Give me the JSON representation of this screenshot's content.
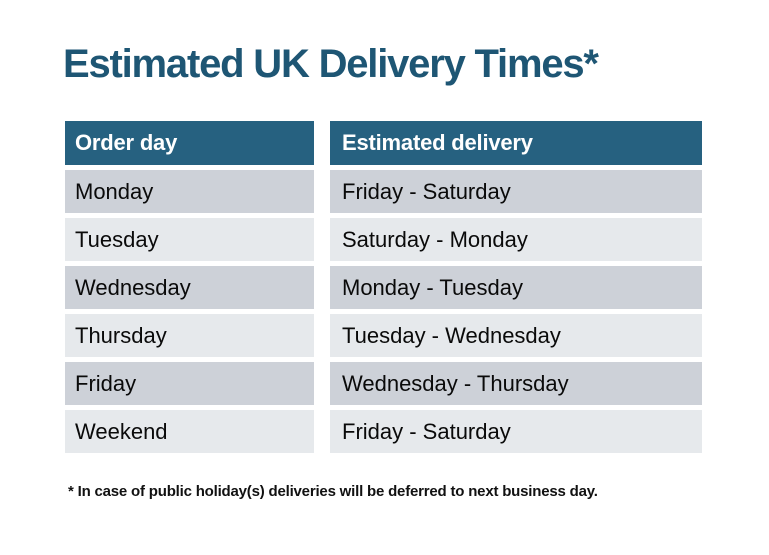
{
  "title": "Estimated UK Delivery Times*",
  "table": {
    "columns": [
      "Order day",
      "Estimated delivery"
    ],
    "rows": [
      [
        "Monday",
        "Friday - Saturday"
      ],
      [
        "Tuesday",
        "Saturday - Monday"
      ],
      [
        "Wednesday",
        "Monday - Tuesday"
      ],
      [
        "Thursday",
        "Tuesday - Wednesday"
      ],
      [
        "Friday",
        "Wednesday - Thursday"
      ],
      [
        "Weekend",
        "Friday - Saturday"
      ]
    ]
  },
  "footnote": "* In case of public holiday(s) deliveries will be deferred to next business day.",
  "chart_data": {
    "type": "table",
    "title": "Estimated UK Delivery Times*",
    "columns": [
      "Order day",
      "Estimated delivery"
    ],
    "rows": [
      [
        "Monday",
        "Friday - Saturday"
      ],
      [
        "Tuesday",
        "Saturday - Monday"
      ],
      [
        "Wednesday",
        "Monday - Tuesday"
      ],
      [
        "Thursday",
        "Tuesday - Wednesday"
      ],
      [
        "Friday",
        "Wednesday - Thursday"
      ],
      [
        "Weekend",
        "Friday - Saturday"
      ]
    ],
    "footnote": "* In case of public holiday(s) deliveries will be deferred to next business day.",
    "layout": {
      "header_position": "top",
      "row_striping": "alternating",
      "gridlines": "none (white gaps between cells)"
    },
    "colors": {
      "title_text": "#1e5674",
      "header_bg": "#266180",
      "header_text": "#ffffff",
      "row_stripe_dark": "#cdd1d8",
      "row_stripe_light": "#e6e9ec",
      "cell_text": "#0a0a0a",
      "background": "#ffffff"
    }
  }
}
